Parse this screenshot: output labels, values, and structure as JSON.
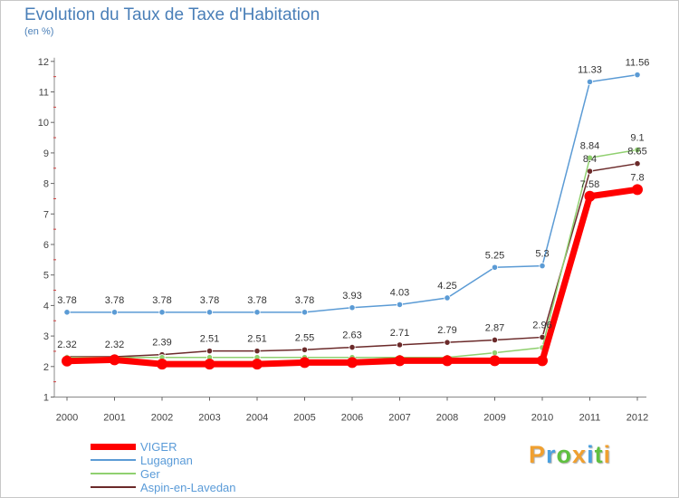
{
  "chart_data": {
    "type": "line",
    "title": "Evolution du Taux de Taxe d'Habitation",
    "unit_label": "(en %)",
    "x": [
      "2000",
      "2001",
      "2002",
      "2003",
      "2004",
      "2005",
      "2006",
      "2007",
      "2008",
      "2009",
      "2010",
      "2011",
      "2012"
    ],
    "ylim": [
      1,
      12
    ],
    "yticks": [
      1,
      2,
      3,
      4,
      5,
      6,
      7,
      8,
      9,
      10,
      11,
      12
    ],
    "grid": false,
    "legend_position": "bottom-left",
    "series": [
      {
        "name": "VIGER",
        "color": "#ff0000",
        "width": 7,
        "values": [
          2.18,
          2.22,
          2.08,
          2.08,
          2.08,
          2.13,
          2.13,
          2.19,
          2.19,
          2.19,
          2.19,
          7.58,
          7.8
        ],
        "labels": [
          "",
          "",
          "",
          "",
          "",
          "",
          "",
          "",
          "",
          "",
          "",
          "7.58",
          "7.8"
        ]
      },
      {
        "name": "Lugagnan",
        "color": "#5b9bd5",
        "width": 1.5,
        "values": [
          3.78,
          3.78,
          3.78,
          3.78,
          3.78,
          3.78,
          3.93,
          4.03,
          4.25,
          5.25,
          5.3,
          11.33,
          11.56
        ],
        "labels": [
          "3.78",
          "3.78",
          "3.78",
          "3.78",
          "3.78",
          "3.78",
          "3.93",
          "4.03",
          "4.25",
          "5.25",
          "5.3",
          "11.33",
          "11.56"
        ]
      },
      {
        "name": "Ger",
        "color": "#90d070",
        "width": 1.5,
        "values": [
          2.3,
          2.3,
          2.3,
          2.3,
          2.3,
          2.3,
          2.3,
          2.3,
          2.3,
          2.45,
          2.62,
          8.84,
          9.1
        ],
        "labels": [
          "",
          "",
          "",
          "",
          "",
          "",
          "",
          "",
          "",
          "",
          "",
          "8.84",
          "9.1"
        ]
      },
      {
        "name": "Aspin-en-Lavedan",
        "color": "#6b2a2a",
        "width": 1.5,
        "values": [
          2.32,
          2.32,
          2.39,
          2.51,
          2.51,
          2.55,
          2.63,
          2.71,
          2.79,
          2.87,
          2.96,
          8.4,
          8.65
        ],
        "labels": [
          "2.32",
          "2.32",
          "2.39",
          "2.51",
          "2.51",
          "2.55",
          "2.63",
          "2.71",
          "2.79",
          "2.87",
          "2.96",
          "8.4",
          "8.65"
        ]
      }
    ]
  },
  "logo": {
    "letters": [
      "P",
      "r",
      "o",
      "x",
      "i",
      "t",
      "i"
    ],
    "colors": [
      "#f0a030",
      "#4aa0e0",
      "#60c040",
      "#f0a030",
      "#4aa0e0",
      "#60c040",
      "#f0a030"
    ]
  }
}
